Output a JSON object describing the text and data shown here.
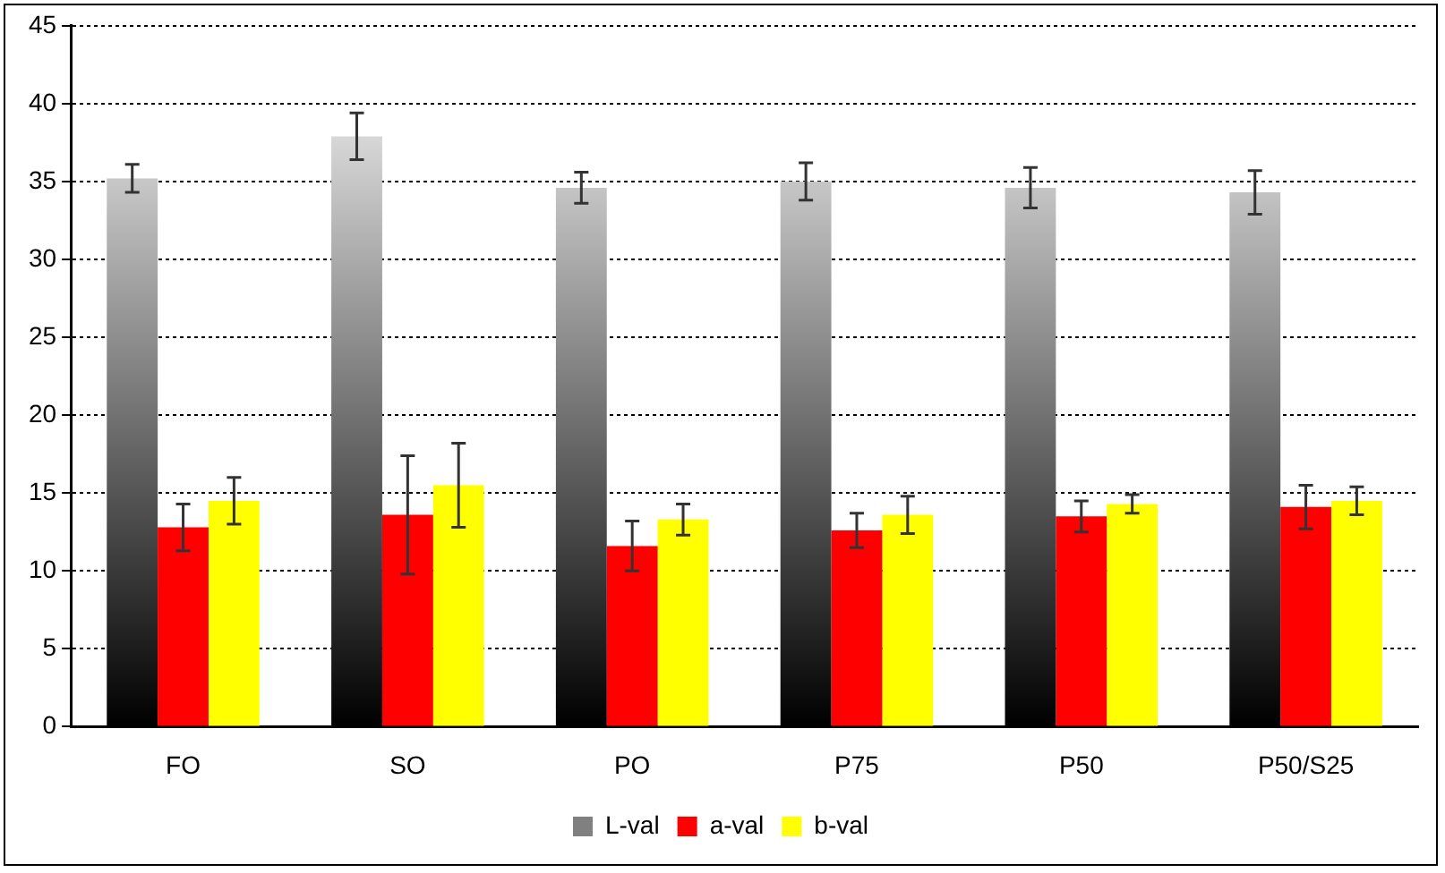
{
  "chart_data": {
    "type": "bar",
    "categories": [
      "FO",
      "SO",
      "PO",
      "P75",
      "P50",
      "P50/S25"
    ],
    "series": [
      {
        "name": "L-val",
        "color": "#808080",
        "values": [
          35.2,
          37.9,
          34.6,
          35.0,
          34.6,
          34.3
        ],
        "errors": [
          0.9,
          1.5,
          1.0,
          1.2,
          1.3,
          1.4
        ]
      },
      {
        "name": "a-val",
        "color": "#ff0000",
        "values": [
          12.8,
          13.6,
          11.6,
          12.6,
          13.5,
          14.1
        ],
        "errors": [
          1.5,
          3.8,
          1.6,
          1.1,
          1.0,
          1.4
        ]
      },
      {
        "name": "b-val",
        "color": "#ffff00",
        "values": [
          14.5,
          15.5,
          13.3,
          13.6,
          14.3,
          14.5
        ],
        "errors": [
          1.5,
          2.7,
          1.0,
          1.2,
          0.6,
          0.9
        ]
      }
    ],
    "ylim": [
      0,
      45
    ],
    "yticks": [
      0,
      5,
      10,
      15,
      20,
      25,
      30,
      35,
      40,
      45
    ],
    "grid": "y",
    "legend": "bottom"
  }
}
